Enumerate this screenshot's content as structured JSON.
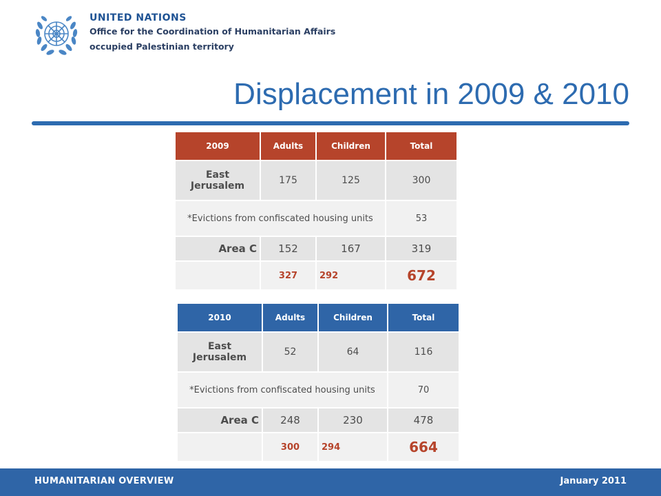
{
  "header": {
    "org_line1": "UNITED NATIONS",
    "org_line2": "Office for the Coordination of Humanitarian Affairs",
    "org_line3": "occupied Palestinian territory",
    "logo_icon": "un-emblem-icon"
  },
  "title": "Displacement in 2009 & 2010",
  "colors": {
    "title_blue": "#2d6bb0",
    "header_red": "#b6442b",
    "header_blue": "#2f65a7",
    "total_red": "#b6442b"
  },
  "table_2009": {
    "headers": [
      "2009",
      "Adults",
      "Children",
      "Total"
    ],
    "east_jerusalem": {
      "label": "East Jerusalem",
      "adults": "175",
      "children": "125",
      "total": "300"
    },
    "evictions": {
      "label": "*Evictions from confiscated housing units",
      "total": "53"
    },
    "area_c": {
      "label": "Area C",
      "adults": "152",
      "children": "167",
      "total": "319"
    },
    "totals": {
      "adults": "327",
      "children": "292",
      "total": "672"
    }
  },
  "table_2010": {
    "headers": [
      "2010",
      "Adults",
      "Children",
      "Total"
    ],
    "east_jerusalem": {
      "label": "East Jerusalem",
      "adults": "52",
      "children": "64",
      "total": "116"
    },
    "evictions": {
      "label": "*Evictions from confiscated housing units",
      "total": "70"
    },
    "area_c": {
      "label": "Area C",
      "adults": "248",
      "children": "230",
      "total": "478"
    },
    "totals": {
      "adults": "300",
      "children": "294",
      "total": "664"
    }
  },
  "footer": {
    "left": "HUMANITARIAN OVERVIEW",
    "right": "January 2011"
  }
}
